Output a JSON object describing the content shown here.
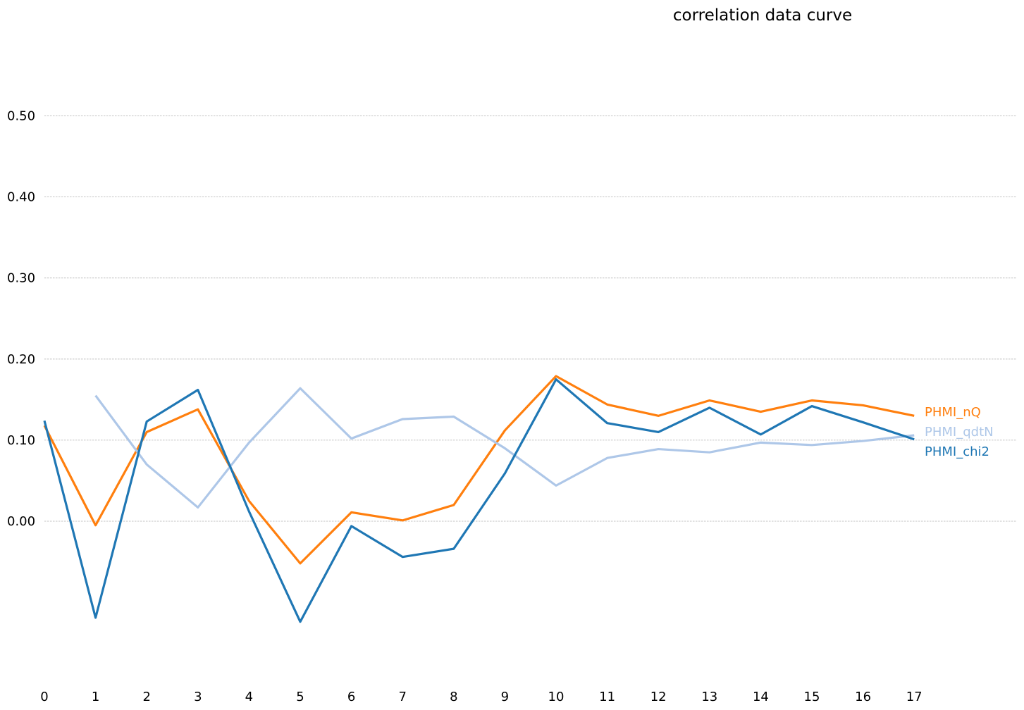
{
  "chart_data": {
    "type": "line",
    "title": "correlation data curve",
    "xlabel": "",
    "ylabel": "",
    "x": [
      0,
      1,
      2,
      3,
      4,
      5,
      6,
      7,
      8,
      9,
      10,
      11,
      12,
      13,
      14,
      15,
      16,
      17
    ],
    "x_tick_labels": [
      "0",
      "1",
      "2",
      "3",
      "4",
      "5",
      "6",
      "7",
      "8",
      "9",
      "10",
      "11",
      "12",
      "13",
      "14",
      "15",
      "16",
      "17"
    ],
    "y_ticks": [
      0.0,
      0.1,
      0.2,
      0.3,
      0.4,
      0.5
    ],
    "y_tick_labels": [
      "0.00",
      "0.10",
      "0.20",
      "0.30",
      "0.40",
      "0.50"
    ],
    "xlim": [
      0,
      19
    ],
    "ylim": [
      -0.2,
      0.65
    ],
    "grid": "horizontal dashed",
    "legend": "inline labels at right end of each line",
    "series": [
      {
        "name": "PHMI_nQ",
        "color": "#ff7f0e",
        "values": [
          0.118,
          -0.005,
          0.11,
          0.138,
          0.025,
          -0.052,
          0.011,
          0.001,
          0.02,
          0.112,
          0.179,
          0.144,
          0.13,
          0.149,
          0.135,
          0.149,
          0.143,
          0.13
        ]
      },
      {
        "name": "PHMI_qdtN",
        "color": "#aec7e8",
        "values": [
          null,
          0.155,
          0.07,
          0.017,
          0.097,
          0.164,
          0.102,
          0.126,
          0.129,
          0.09,
          0.044,
          0.078,
          0.089,
          0.085,
          0.097,
          0.094,
          0.099,
          0.106
        ]
      },
      {
        "name": "PHMI_chi2",
        "color": "#1f77b4",
        "values": [
          0.124,
          -0.119,
          0.123,
          0.162,
          0.012,
          -0.124,
          -0.006,
          -0.044,
          -0.034,
          0.059,
          0.175,
          0.121,
          0.11,
          0.14,
          0.107,
          0.142,
          0.122,
          0.101
        ]
      }
    ]
  }
}
